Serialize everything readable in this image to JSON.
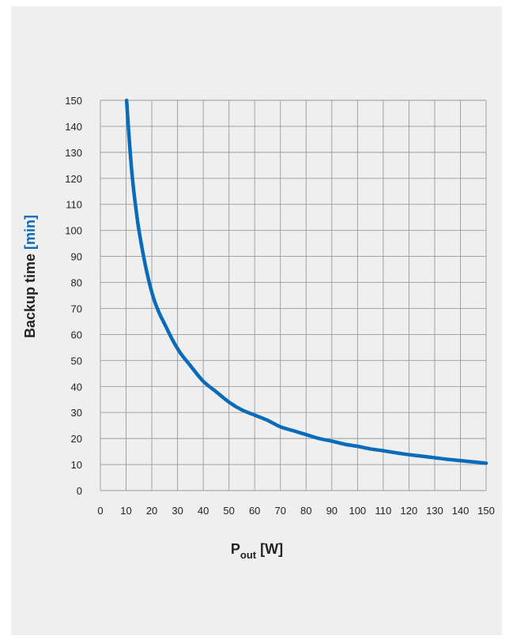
{
  "chart_data": {
    "type": "line",
    "title": "",
    "xlabel": {
      "main": "P",
      "subscript": "out",
      "unit": " [W]"
    },
    "ylabel": {
      "main": "Backup time ",
      "unit": "[min]"
    },
    "xlim": [
      0,
      150
    ],
    "ylim": [
      0,
      150
    ],
    "xticks": [
      0,
      10,
      20,
      30,
      40,
      50,
      60,
      70,
      80,
      90,
      100,
      110,
      120,
      130,
      140,
      150
    ],
    "yticks": [
      0,
      10,
      20,
      30,
      40,
      50,
      60,
      70,
      80,
      90,
      100,
      110,
      120,
      130,
      140,
      150
    ],
    "grid": true,
    "legend": "none",
    "series": [
      {
        "color": "#0a6bb8",
        "x": [
          10.2,
          11,
          12,
          13,
          14,
          15,
          17,
          19,
          21,
          23,
          25,
          28,
          31,
          35,
          40,
          45,
          50,
          55,
          60,
          65,
          70,
          75,
          80,
          85,
          90,
          95,
          100,
          105,
          110,
          115,
          120,
          125,
          130,
          135,
          140,
          145,
          150
        ],
        "y": [
          150,
          138,
          125,
          115,
          107,
          100,
          89,
          80,
          73,
          68,
          64,
          58,
          53,
          48,
          42,
          38,
          34,
          31,
          29,
          27,
          24.5,
          23,
          21.5,
          20,
          19,
          17.8,
          17,
          16,
          15.3,
          14.5,
          13.8,
          13.2,
          12.6,
          12,
          11.5,
          11,
          10.5
        ]
      }
    ]
  },
  "colors": {
    "panel_background": "#efefef",
    "grid": "#9a9a9a",
    "curve": "#0a6bb8",
    "unit_highlight": "#0a6bb8",
    "text": "#222222"
  }
}
